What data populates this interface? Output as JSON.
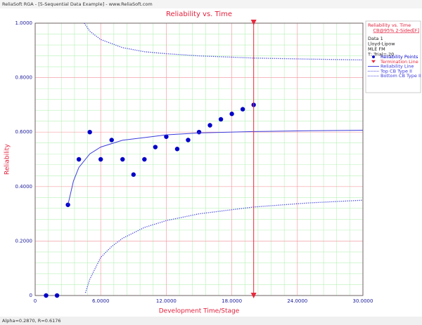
{
  "window_title": "ReliaSoft RGA - [5-Sequential Data Example] - www.ReliaSoft.com",
  "footer": "Alpha=0.2870, R=0.6176",
  "chart_data": {
    "type": "scatter",
    "title": "Reliability vs. Time",
    "x_label": "Development Time/Stage",
    "y_label": "Reliability",
    "xlim": [
      0,
      30
    ],
    "ylim": [
      0,
      1
    ],
    "xticks": [
      0,
      {
        "value": 6,
        "label": "6.0000"
      },
      {
        "value": 12,
        "label": "12.0000"
      },
      {
        "value": 18,
        "label": "18.0000"
      },
      {
        "value": 24,
        "label": "24.0000"
      },
      {
        "value": 30,
        "label": "30.0000"
      }
    ],
    "yticks": [
      0,
      {
        "value": 0.2,
        "label": "0.2000"
      },
      {
        "value": 0.4,
        "label": "0.4000"
      },
      {
        "value": 0.6,
        "label": "0.6000"
      },
      {
        "value": 0.8,
        "label": "0.8000"
      },
      {
        "value": 1,
        "label": "1.0000"
      }
    ],
    "grid": true,
    "legend_info": [
      "Reliability vs. Time",
      "CB@95% 2-Sided[F]",
      "Data 1",
      "Lloyd-Lipow",
      "MLE FM",
      "T; Trial= 20"
    ],
    "termination": {
      "name": "Termination Line",
      "color": "#e8283c",
      "x": 20
    },
    "series": [
      {
        "name": "Reliability Points",
        "color": "#0000c8",
        "style": "points",
        "x": [
          1,
          2,
          3,
          4,
          5,
          6,
          7,
          8,
          9,
          10,
          11,
          12,
          13,
          14,
          15,
          16,
          17,
          18,
          19,
          20
        ],
        "values": [
          0,
          0,
          0.333,
          0.5,
          0.6,
          0.5,
          0.571,
          0.5,
          0.444,
          0.5,
          0.545,
          0.583,
          0.538,
          0.571,
          0.6,
          0.625,
          0.647,
          0.667,
          0.684,
          0.7
        ]
      },
      {
        "name": "Reliability Line",
        "color": "#3c3cdc",
        "style": "solid",
        "x": [
          3,
          3.5,
          4,
          5,
          6,
          8,
          10,
          12,
          15,
          20,
          25,
          30
        ],
        "values": [
          0.333,
          0.42,
          0.47,
          0.52,
          0.545,
          0.57,
          0.58,
          0.59,
          0.597,
          0.602,
          0.605,
          0.607
        ]
      },
      {
        "name": "Top CB Type II",
        "color": "#3c3cdc",
        "style": "dotted",
        "x": [
          4.5,
          5,
          6,
          8,
          10,
          12,
          15,
          20,
          25,
          30
        ],
        "values": [
          1,
          0.97,
          0.94,
          0.91,
          0.895,
          0.888,
          0.88,
          0.872,
          0.868,
          0.865
        ]
      },
      {
        "name": "Bottom CB Type II",
        "color": "#3c3cdc",
        "style": "dotted",
        "x": [
          4.6,
          5,
          6,
          7,
          8,
          10,
          12,
          15,
          20,
          25,
          30
        ],
        "values": [
          0.01,
          0.06,
          0.14,
          0.18,
          0.21,
          0.25,
          0.275,
          0.3,
          0.325,
          0.34,
          0.35
        ]
      }
    ]
  }
}
